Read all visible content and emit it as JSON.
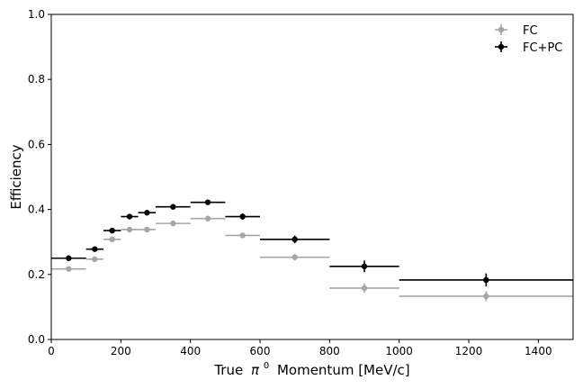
{
  "chart_data": {
    "type": "scatter",
    "title": "",
    "xlabel": "True",
    "xlabel_symbol": "π",
    "xlabel_superscript": "0",
    "xlabel_rest": "Momentum [MeV/c]",
    "ylabel": "Efficiency",
    "xlim": [
      0,
      1500
    ],
    "ylim": [
      0.0,
      1.0
    ],
    "xticks": [
      0,
      200,
      400,
      600,
      800,
      1000,
      1200,
      1400
    ],
    "yticks": [
      0.0,
      0.2,
      0.4,
      0.6,
      0.8,
      1.0
    ],
    "xtick_labels": [
      "0",
      "200",
      "400",
      "600",
      "800",
      "1000",
      "1200",
      "1400"
    ],
    "ytick_labels": [
      "0.0",
      "0.2",
      "0.4",
      "0.6",
      "0.8",
      "1.0"
    ],
    "grid": false,
    "legend_position": "top-right",
    "series": [
      {
        "name": "FC",
        "color": "#a6a6a6",
        "points": [
          {
            "x": 50,
            "xlo": 0,
            "xhi": 100,
            "y": 0.217,
            "yerr": 0.006
          },
          {
            "x": 125,
            "xlo": 100,
            "xhi": 150,
            "y": 0.247,
            "yerr": 0.006
          },
          {
            "x": 175,
            "xlo": 150,
            "xhi": 200,
            "y": 0.308,
            "yerr": 0.006
          },
          {
            "x": 225,
            "xlo": 200,
            "xhi": 250,
            "y": 0.338,
            "yerr": 0.006
          },
          {
            "x": 275,
            "xlo": 250,
            "xhi": 300,
            "y": 0.338,
            "yerr": 0.006
          },
          {
            "x": 350,
            "xlo": 300,
            "xhi": 400,
            "y": 0.357,
            "yerr": 0.006
          },
          {
            "x": 450,
            "xlo": 400,
            "xhi": 500,
            "y": 0.372,
            "yerr": 0.006
          },
          {
            "x": 550,
            "xlo": 500,
            "xhi": 600,
            "y": 0.32,
            "yerr": 0.008
          },
          {
            "x": 700,
            "xlo": 600,
            "xhi": 800,
            "y": 0.253,
            "yerr": 0.01
          },
          {
            "x": 900,
            "xlo": 800,
            "xhi": 1000,
            "y": 0.158,
            "yerr": 0.014
          },
          {
            "x": 1250,
            "xlo": 1000,
            "xhi": 1500,
            "y": 0.133,
            "yerr": 0.015
          }
        ]
      },
      {
        "name": "FC+PC",
        "color": "#000000",
        "points": [
          {
            "x": 50,
            "xlo": 0,
            "xhi": 100,
            "y": 0.25,
            "yerr": 0.006
          },
          {
            "x": 125,
            "xlo": 100,
            "xhi": 150,
            "y": 0.278,
            "yerr": 0.006
          },
          {
            "x": 175,
            "xlo": 150,
            "xhi": 200,
            "y": 0.335,
            "yerr": 0.006
          },
          {
            "x": 225,
            "xlo": 200,
            "xhi": 250,
            "y": 0.378,
            "yerr": 0.007
          },
          {
            "x": 275,
            "xlo": 250,
            "xhi": 300,
            "y": 0.39,
            "yerr": 0.007
          },
          {
            "x": 350,
            "xlo": 300,
            "xhi": 400,
            "y": 0.408,
            "yerr": 0.006
          },
          {
            "x": 450,
            "xlo": 400,
            "xhi": 500,
            "y": 0.422,
            "yerr": 0.007
          },
          {
            "x": 550,
            "xlo": 500,
            "xhi": 600,
            "y": 0.378,
            "yerr": 0.01
          },
          {
            "x": 700,
            "xlo": 600,
            "xhi": 800,
            "y": 0.308,
            "yerr": 0.012
          },
          {
            "x": 900,
            "xlo": 800,
            "xhi": 1000,
            "y": 0.225,
            "yerr": 0.018
          },
          {
            "x": 1250,
            "xlo": 1000,
            "xhi": 1500,
            "y": 0.183,
            "yerr": 0.02
          }
        ]
      }
    ]
  }
}
